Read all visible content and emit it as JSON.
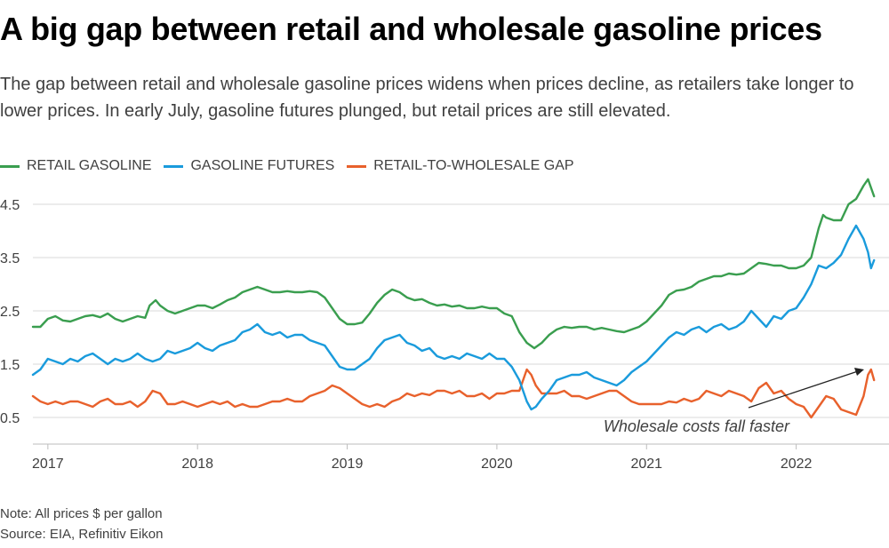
{
  "header": {
    "title": "A big gap between retail and wholesale gasoline prices",
    "subtitle": "The gap between retail and wholesale gasoline prices widens when prices decline, as retailers take longer to lower prices. In early July, gasoline futures plunged, but retail prices are still elevated."
  },
  "legend": [
    {
      "label": "RETAIL GASOLINE",
      "color": "#3a9e4f"
    },
    {
      "label": "GASOLINE FUTURES",
      "color": "#1a9bdc"
    },
    {
      "label": "RETAIL-TO-WHOLESALE GAP",
      "color": "#e8612c"
    }
  ],
  "annotation": {
    "text": "Wholesale costs fall faster"
  },
  "footer": {
    "note": "Note: All prices $ per gallon",
    "source": "Source: EIA, Refinitiv Eikon"
  },
  "chart_data": {
    "type": "line",
    "title": "A big gap between retail and wholesale gasoline prices",
    "xlabel": "",
    "ylabel": "",
    "x_tick_labels": [
      "2017",
      "2018",
      "2019",
      "2020",
      "2021",
      "2022"
    ],
    "y_tick_labels": [
      "0.5",
      "1.5",
      "2.5",
      "3.5",
      "4.5"
    ],
    "y_ticks": [
      0.5,
      1.5,
      2.5,
      3.5,
      4.5
    ],
    "ylim": [
      0,
      5.0
    ],
    "xlim": [
      2016.9,
      2022.62
    ],
    "grid": true,
    "legend_position": "top-left",
    "series": [
      {
        "name": "RETAIL GASOLINE",
        "color": "#3a9e4f",
        "x": [
          2016.9,
          2016.95,
          2017.0,
          2017.05,
          2017.1,
          2017.15,
          2017.2,
          2017.25,
          2017.3,
          2017.35,
          2017.4,
          2017.45,
          2017.5,
          2017.55,
          2017.6,
          2017.65,
          2017.68,
          2017.72,
          2017.75,
          2017.8,
          2017.85,
          2017.9,
          2017.95,
          2018.0,
          2018.05,
          2018.1,
          2018.15,
          2018.2,
          2018.25,
          2018.3,
          2018.35,
          2018.4,
          2018.45,
          2018.5,
          2018.55,
          2018.6,
          2018.65,
          2018.7,
          2018.75,
          2018.8,
          2018.85,
          2018.9,
          2018.95,
          2019.0,
          2019.05,
          2019.1,
          2019.15,
          2019.2,
          2019.25,
          2019.3,
          2019.35,
          2019.4,
          2019.45,
          2019.5,
          2019.55,
          2019.6,
          2019.65,
          2019.7,
          2019.75,
          2019.8,
          2019.85,
          2019.9,
          2019.95,
          2020.0,
          2020.05,
          2020.1,
          2020.15,
          2020.2,
          2020.25,
          2020.3,
          2020.35,
          2020.4,
          2020.45,
          2020.5,
          2020.55,
          2020.6,
          2020.65,
          2020.7,
          2020.75,
          2020.8,
          2020.85,
          2020.9,
          2020.95,
          2021.0,
          2021.05,
          2021.1,
          2021.15,
          2021.2,
          2021.25,
          2021.3,
          2021.35,
          2021.4,
          2021.45,
          2021.5,
          2021.55,
          2021.6,
          2021.65,
          2021.7,
          2021.75,
          2021.8,
          2021.85,
          2021.9,
          2021.95,
          2022.0,
          2022.05,
          2022.1,
          2022.15,
          2022.18,
          2022.2,
          2022.25,
          2022.3,
          2022.35,
          2022.4,
          2022.45,
          2022.48,
          2022.52
        ],
        "y": [
          2.2,
          2.2,
          2.35,
          2.4,
          2.32,
          2.3,
          2.35,
          2.4,
          2.42,
          2.38,
          2.45,
          2.35,
          2.3,
          2.35,
          2.4,
          2.37,
          2.6,
          2.7,
          2.6,
          2.5,
          2.45,
          2.5,
          2.55,
          2.6,
          2.6,
          2.55,
          2.62,
          2.7,
          2.75,
          2.85,
          2.9,
          2.95,
          2.9,
          2.85,
          2.85,
          2.87,
          2.85,
          2.85,
          2.87,
          2.85,
          2.75,
          2.55,
          2.35,
          2.25,
          2.25,
          2.28,
          2.45,
          2.65,
          2.8,
          2.9,
          2.85,
          2.75,
          2.7,
          2.72,
          2.65,
          2.6,
          2.62,
          2.58,
          2.6,
          2.55,
          2.55,
          2.58,
          2.55,
          2.55,
          2.45,
          2.4,
          2.1,
          1.9,
          1.8,
          1.9,
          2.05,
          2.15,
          2.2,
          2.18,
          2.2,
          2.2,
          2.15,
          2.18,
          2.15,
          2.12,
          2.1,
          2.15,
          2.2,
          2.3,
          2.45,
          2.6,
          2.8,
          2.88,
          2.9,
          2.95,
          3.05,
          3.1,
          3.15,
          3.15,
          3.2,
          3.18,
          3.2,
          3.3,
          3.4,
          3.38,
          3.35,
          3.35,
          3.3,
          3.3,
          3.35,
          3.5,
          4.05,
          4.3,
          4.25,
          4.2,
          4.2,
          4.5,
          4.6,
          4.85,
          4.97,
          4.65
        ]
      },
      {
        "name": "GASOLINE FUTURES",
        "color": "#1a9bdc",
        "x": [
          2016.9,
          2016.95,
          2017.0,
          2017.05,
          2017.1,
          2017.15,
          2017.2,
          2017.25,
          2017.3,
          2017.35,
          2017.4,
          2017.45,
          2017.5,
          2017.55,
          2017.6,
          2017.65,
          2017.7,
          2017.75,
          2017.8,
          2017.85,
          2017.9,
          2017.95,
          2018.0,
          2018.05,
          2018.1,
          2018.15,
          2018.2,
          2018.25,
          2018.3,
          2018.35,
          2018.4,
          2018.45,
          2018.5,
          2018.55,
          2018.6,
          2018.65,
          2018.7,
          2018.75,
          2018.8,
          2018.85,
          2018.9,
          2018.95,
          2019.0,
          2019.05,
          2019.1,
          2019.15,
          2019.2,
          2019.25,
          2019.3,
          2019.35,
          2019.4,
          2019.45,
          2019.5,
          2019.55,
          2019.6,
          2019.65,
          2019.7,
          2019.75,
          2019.8,
          2019.85,
          2019.9,
          2019.95,
          2020.0,
          2020.05,
          2020.1,
          2020.15,
          2020.2,
          2020.23,
          2020.26,
          2020.3,
          2020.35,
          2020.4,
          2020.45,
          2020.5,
          2020.55,
          2020.6,
          2020.65,
          2020.7,
          2020.75,
          2020.8,
          2020.85,
          2020.9,
          2020.95,
          2021.0,
          2021.05,
          2021.1,
          2021.15,
          2021.2,
          2021.25,
          2021.3,
          2021.35,
          2021.4,
          2021.45,
          2021.5,
          2021.55,
          2021.6,
          2021.65,
          2021.7,
          2021.75,
          2021.8,
          2021.85,
          2021.9,
          2021.95,
          2022.0,
          2022.05,
          2022.1,
          2022.15,
          2022.2,
          2022.25,
          2022.3,
          2022.35,
          2022.4,
          2022.45,
          2022.48,
          2022.5,
          2022.52
        ],
        "y": [
          1.3,
          1.4,
          1.6,
          1.55,
          1.5,
          1.6,
          1.55,
          1.65,
          1.7,
          1.6,
          1.5,
          1.6,
          1.55,
          1.6,
          1.7,
          1.6,
          1.55,
          1.6,
          1.75,
          1.7,
          1.75,
          1.8,
          1.9,
          1.8,
          1.75,
          1.85,
          1.9,
          1.95,
          2.1,
          2.15,
          2.25,
          2.1,
          2.05,
          2.1,
          2.0,
          2.05,
          2.05,
          1.95,
          1.9,
          1.85,
          1.65,
          1.45,
          1.4,
          1.4,
          1.5,
          1.6,
          1.8,
          1.95,
          2.0,
          2.05,
          1.9,
          1.85,
          1.75,
          1.8,
          1.65,
          1.6,
          1.65,
          1.6,
          1.7,
          1.65,
          1.6,
          1.7,
          1.6,
          1.6,
          1.45,
          1.2,
          0.8,
          0.65,
          0.7,
          0.85,
          1.0,
          1.2,
          1.25,
          1.3,
          1.3,
          1.35,
          1.25,
          1.2,
          1.15,
          1.1,
          1.2,
          1.35,
          1.45,
          1.55,
          1.7,
          1.85,
          2.0,
          2.1,
          2.05,
          2.15,
          2.2,
          2.1,
          2.2,
          2.25,
          2.15,
          2.2,
          2.3,
          2.5,
          2.35,
          2.2,
          2.4,
          2.35,
          2.5,
          2.55,
          2.75,
          3.0,
          3.35,
          3.3,
          3.4,
          3.55,
          3.85,
          4.1,
          3.85,
          3.6,
          3.3,
          3.45
        ]
      },
      {
        "name": "RETAIL-TO-WHOLESALE GAP",
        "color": "#e8612c",
        "x": [
          2016.9,
          2016.95,
          2017.0,
          2017.05,
          2017.1,
          2017.15,
          2017.2,
          2017.25,
          2017.3,
          2017.35,
          2017.4,
          2017.45,
          2017.5,
          2017.55,
          2017.6,
          2017.65,
          2017.7,
          2017.75,
          2017.8,
          2017.85,
          2017.9,
          2017.95,
          2018.0,
          2018.05,
          2018.1,
          2018.15,
          2018.2,
          2018.25,
          2018.3,
          2018.35,
          2018.4,
          2018.45,
          2018.5,
          2018.55,
          2018.6,
          2018.65,
          2018.7,
          2018.75,
          2018.8,
          2018.85,
          2018.9,
          2018.95,
          2019.0,
          2019.05,
          2019.1,
          2019.15,
          2019.2,
          2019.25,
          2019.3,
          2019.35,
          2019.4,
          2019.45,
          2019.5,
          2019.55,
          2019.6,
          2019.65,
          2019.7,
          2019.75,
          2019.8,
          2019.85,
          2019.9,
          2019.95,
          2020.0,
          2020.05,
          2020.1,
          2020.15,
          2020.2,
          2020.23,
          2020.26,
          2020.3,
          2020.35,
          2020.4,
          2020.45,
          2020.5,
          2020.55,
          2020.6,
          2020.65,
          2020.7,
          2020.75,
          2020.8,
          2020.85,
          2020.9,
          2020.95,
          2021.0,
          2021.05,
          2021.1,
          2021.15,
          2021.2,
          2021.25,
          2021.3,
          2021.35,
          2021.4,
          2021.45,
          2021.5,
          2021.55,
          2021.6,
          2021.65,
          2021.7,
          2021.75,
          2021.8,
          2021.85,
          2021.9,
          2021.95,
          2022.0,
          2022.05,
          2022.1,
          2022.15,
          2022.2,
          2022.25,
          2022.3,
          2022.35,
          2022.4,
          2022.45,
          2022.48,
          2022.5,
          2022.52
        ],
        "y": [
          0.9,
          0.8,
          0.75,
          0.8,
          0.75,
          0.8,
          0.8,
          0.75,
          0.7,
          0.8,
          0.85,
          0.75,
          0.75,
          0.8,
          0.7,
          0.8,
          1.0,
          0.95,
          0.75,
          0.75,
          0.8,
          0.75,
          0.7,
          0.75,
          0.8,
          0.75,
          0.8,
          0.7,
          0.75,
          0.7,
          0.7,
          0.75,
          0.8,
          0.8,
          0.85,
          0.8,
          0.8,
          0.9,
          0.95,
          1.0,
          1.1,
          1.05,
          0.95,
          0.85,
          0.75,
          0.7,
          0.75,
          0.7,
          0.8,
          0.85,
          0.95,
          0.9,
          0.95,
          0.92,
          1.0,
          1.0,
          0.95,
          1.0,
          0.9,
          0.9,
          0.95,
          0.85,
          0.95,
          0.95,
          1.0,
          1.0,
          1.4,
          1.3,
          1.1,
          0.95,
          0.95,
          0.95,
          1.0,
          0.9,
          0.9,
          0.85,
          0.9,
          0.95,
          1.0,
          1.0,
          0.9,
          0.8,
          0.75,
          0.75,
          0.75,
          0.75,
          0.8,
          0.78,
          0.85,
          0.8,
          0.85,
          1.0,
          0.95,
          0.9,
          1.0,
          0.95,
          0.9,
          0.8,
          1.05,
          1.15,
          0.95,
          1.0,
          0.85,
          0.75,
          0.7,
          0.5,
          0.7,
          0.9,
          0.85,
          0.65,
          0.6,
          0.55,
          0.9,
          1.3,
          1.4,
          1.2
        ]
      }
    ]
  }
}
